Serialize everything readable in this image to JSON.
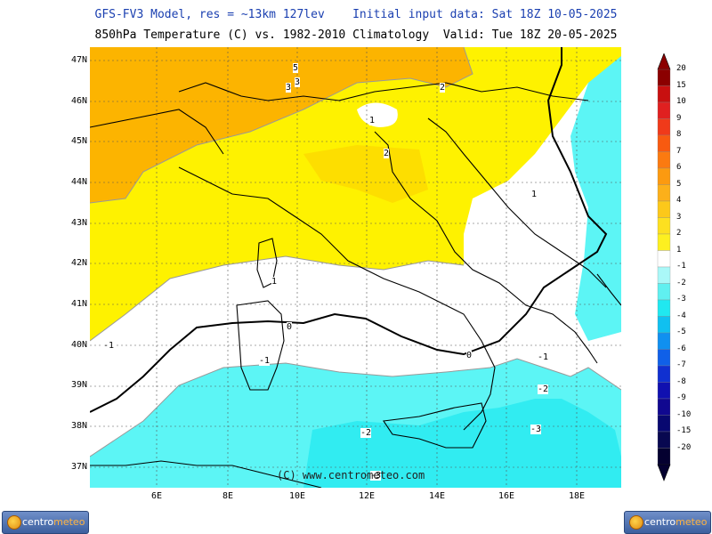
{
  "header": {
    "line1": "GFS-FV3 Model, res = ~13km 127lev    Initial input data: Sat 18Z 10-05-2025",
    "line2": "850hPa Temperature (C) vs. 1982-2010 Climatology  Valid: Tue 18Z 20-05-2025"
  },
  "map": {
    "lat_labels": [
      "47N",
      "46N",
      "45N",
      "44N",
      "43N",
      "42N",
      "41N",
      "40N",
      "39N",
      "38N",
      "37N"
    ],
    "lon_labels": [
      "6E",
      "8E",
      "10E",
      "12E",
      "14E",
      "16E",
      "18E"
    ],
    "contour_labels": [
      "5",
      "3",
      "3",
      "2",
      "1",
      "2",
      "1",
      "1",
      "0",
      "0",
      "-1",
      "-1",
      "-1",
      "-2",
      "-2",
      "-3",
      "-3"
    ],
    "copyright": "(C) www.centrometeo.com"
  },
  "colorbar": {
    "labels": [
      "20",
      "15",
      "10",
      "9",
      "8",
      "7",
      "6",
      "5",
      "4",
      "3",
      "2",
      "1",
      "-1",
      "-2",
      "-3",
      "-4",
      "-5",
      "-6",
      "-7",
      "-8",
      "-9",
      "-10",
      "-15",
      "-20"
    ],
    "colors": [
      "#8b0000",
      "#c81010",
      "#e02020",
      "#f03a1a",
      "#f85a10",
      "#fb7a10",
      "#fc9a10",
      "#fcb01a",
      "#fcc81a",
      "#fde020",
      "#fdf020",
      "#ffffff",
      "#aaf8f8",
      "#60f0f0",
      "#20e8f0",
      "#10c0f0",
      "#1090f0",
      "#1060e8",
      "#1030d0",
      "#1010b0",
      "#100890",
      "#080870",
      "#080850",
      "#040030"
    ]
  },
  "logos": {
    "left": "centro meteo",
    "right": "centro meteo"
  },
  "colors": {
    "title_blue": "#1a3fb0",
    "yellow": "#fef200",
    "orange": "#fcb400",
    "cyan": "#5cf5f5"
  }
}
